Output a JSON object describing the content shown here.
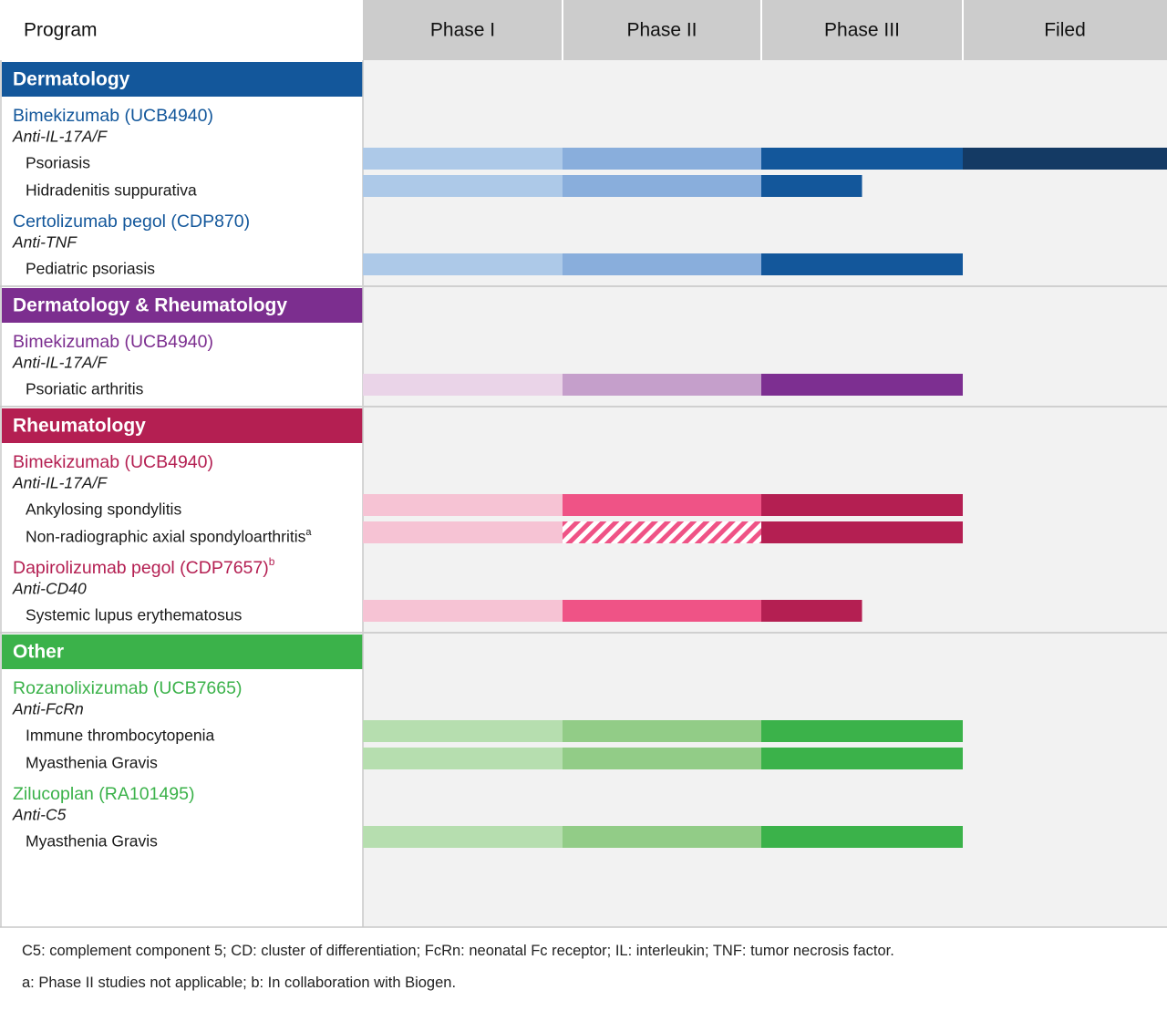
{
  "header": {
    "program_label": "Program",
    "phases": [
      "Phase I",
      "Phase II",
      "Phase III",
      "Filed"
    ]
  },
  "chart_data": {
    "type": "bar",
    "phases": [
      "Phase I",
      "Phase II",
      "Phase III",
      "Filed"
    ],
    "sections": [
      {
        "name": "Dermatology",
        "color": "#13579b",
        "programs": [
          {
            "name": "Bimekizumab (UCB4940)",
            "target": "Anti-IL-17A/F",
            "indications": [
              {
                "name": "Psoriasis",
                "superscript": "",
                "progress": 4.0,
                "phase2_hatched": false
              },
              {
                "name": "Hidradenitis suppurativa",
                "superscript": "",
                "progress": 2.5,
                "phase2_hatched": false
              }
            ]
          },
          {
            "name": "Certolizumab pegol (CDP870)",
            "target": "Anti-TNF",
            "indications": [
              {
                "name": "Pediatric psoriasis",
                "superscript": "",
                "progress": 3.0,
                "phase2_hatched": false
              }
            ]
          }
        ],
        "phase_colors": [
          "#adc9e8",
          "#89aedc",
          "#13579b",
          "#143a64"
        ]
      },
      {
        "name": "Dermatology & Rheumatology",
        "color": "#7c2e8f",
        "programs": [
          {
            "name": "Bimekizumab (UCB4940)",
            "target": "Anti-IL-17A/F",
            "indications": [
              {
                "name": "Psoriatic arthritis",
                "superscript": "",
                "progress": 3.0,
                "phase2_hatched": false
              }
            ]
          }
        ],
        "phase_colors": [
          "#ead4e8",
          "#c59fcb",
          "#7d2f91",
          "#7d2f91"
        ]
      },
      {
        "name": "Rheumatology",
        "color": "#b41f52",
        "programs": [
          {
            "name": "Bimekizumab (UCB4940)",
            "target": "Anti-IL-17A/F",
            "indications": [
              {
                "name": "Ankylosing spondylitis",
                "superscript": "",
                "progress": 3.0,
                "phase2_hatched": false
              },
              {
                "name": "Non-radiographic axial spondyloarthritis",
                "superscript": "a",
                "progress": 3.0,
                "phase2_hatched": true
              }
            ]
          },
          {
            "name": "Dapirolizumab pegol (CDP7657)",
            "name_superscript": "b",
            "target": "Anti-CD40",
            "indications": [
              {
                "name": "Systemic lupus erythematosus",
                "superscript": "",
                "progress": 2.5,
                "phase2_hatched": false
              }
            ]
          }
        ],
        "phase_colors": [
          "#f6c3d4",
          "#ef5386",
          "#b41f52",
          "#b41f52"
        ]
      },
      {
        "name": "Other",
        "color": "#3bb24a",
        "programs": [
          {
            "name": "Rozanolixizumab (UCB7665)",
            "target": "Anti-FcRn",
            "indications": [
              {
                "name": "Immune thrombocytopenia",
                "superscript": "",
                "progress": 3.0,
                "phase2_hatched": false
              },
              {
                "name": "Myasthenia Gravis",
                "superscript": "",
                "progress": 3.0,
                "phase2_hatched": false
              }
            ]
          },
          {
            "name": "Zilucoplan (RA101495)",
            "target": "Anti-C5",
            "indications": [
              {
                "name": "Myasthenia Gravis",
                "superscript": "",
                "progress": 3.0,
                "phase2_hatched": false
              }
            ]
          }
        ],
        "phase_colors": [
          "#b6deaf",
          "#92cc87",
          "#3bb24a",
          "#3bb24a"
        ]
      }
    ]
  },
  "footnotes": {
    "abbreviations": "C5: complement component 5; CD: cluster of differentiation; FcRn: neonatal Fc receptor; IL: interleukin; TNF: tumor necrosis factor.",
    "notes": "a: Phase II studies not applicable; b: In collaboration with Biogen."
  }
}
